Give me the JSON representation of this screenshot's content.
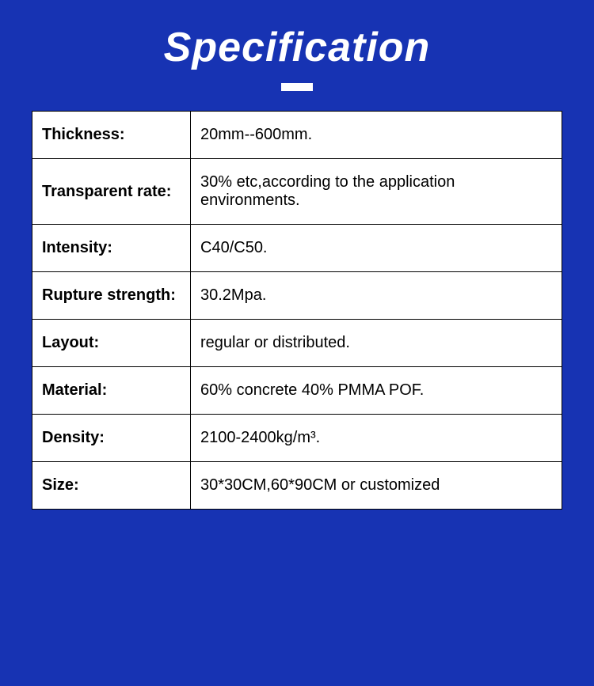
{
  "title": "Specification",
  "background_color": "#1733b3",
  "title_color": "#ffffff",
  "underline_color": "#ffffff",
  "table_background": "#ffffff",
  "border_color": "#000000",
  "rows": [
    {
      "label": "Thickness:",
      "value": "20mm--600mm."
    },
    {
      "label": "Transparent rate:",
      "value": "30% etc,according to the application environments."
    },
    {
      "label": "Intensity:",
      "value": "C40/C50."
    },
    {
      "label": "Rupture strength:",
      "value": "30.2Mpa."
    },
    {
      "label": "Layout:",
      "value": "regular or distributed."
    },
    {
      "label": "Material:",
      "value": "60% concrete 40% PMMA POF."
    },
    {
      "label": "Density:",
      "value": "2100-2400kg/m³."
    },
    {
      "label": "Size:",
      "value": "30*30CM,60*90CM or customized"
    }
  ]
}
